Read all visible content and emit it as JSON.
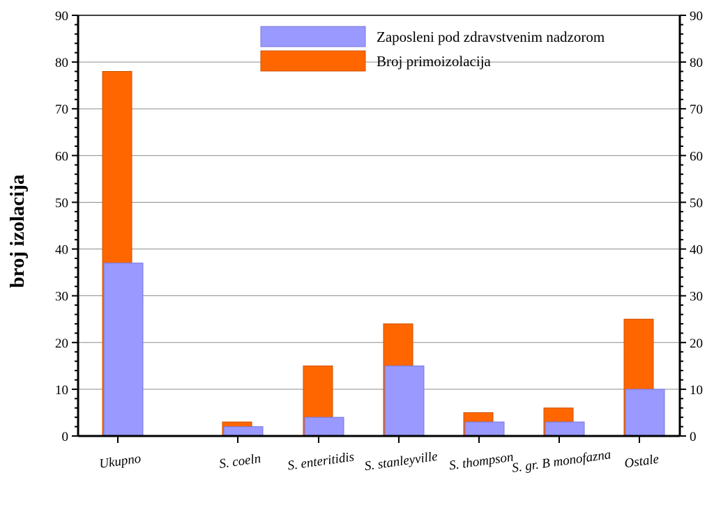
{
  "chart_data": {
    "type": "bar",
    "title": "",
    "xlabel": "",
    "ylabel": "broj izolacija",
    "ylim": [
      0,
      90
    ],
    "yticks": [
      0,
      10,
      20,
      30,
      40,
      50,
      60,
      70,
      80,
      90
    ],
    "grid": true,
    "legend_position": "top-right",
    "categories": [
      "Ukupno",
      "S. coeln",
      "S. enteritidis",
      "S. stanleyville",
      "S. thompson",
      "S. gr. B monofazna",
      "Ostale"
    ],
    "series": [
      {
        "name": "Broj primoizolacija",
        "color": "#ff6600",
        "values": [
          78,
          3,
          15,
          24,
          5,
          6,
          25
        ]
      },
      {
        "name": "Zaposleni pod zdravstvenim nadzorom",
        "color": "#9999ff",
        "values": [
          37,
          2,
          4,
          15,
          3,
          3,
          10
        ]
      }
    ],
    "legend_order": [
      1,
      0
    ]
  }
}
